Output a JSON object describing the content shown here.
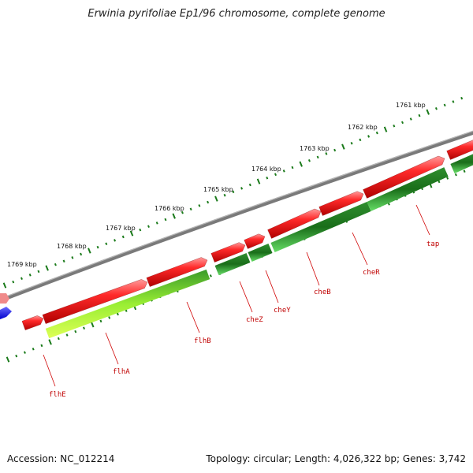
{
  "title": "Erwinia pyrifoliae Ep1/96 chromosome, complete genome",
  "footer": {
    "accession": "Accession: NC_012214",
    "summary": "Topology: circular; Length: 4,026,322 bp; Genes: 3,742"
  },
  "colors": {
    "forward_gene": "#ee1111",
    "reverse_gene_dark": "#1a8a1a",
    "reverse_gene_light": "#44dd44",
    "reverse_gene_yellow": "#ccff33",
    "backbone": "#808080",
    "tick": "#1a7a1a",
    "label": "#c00000"
  },
  "scale_labels": [
    "1761 kbp",
    "1762 kbp",
    "1763 kbp",
    "1764 kbp",
    "1765 kbp",
    "1766 kbp",
    "1767 kbp",
    "1768 kbp",
    "1769 kbp"
  ],
  "gene_labels": [
    "tap",
    "cheR",
    "cheB",
    "cheY",
    "cheZ",
    "flhB",
    "flhA",
    "flhE"
  ]
}
